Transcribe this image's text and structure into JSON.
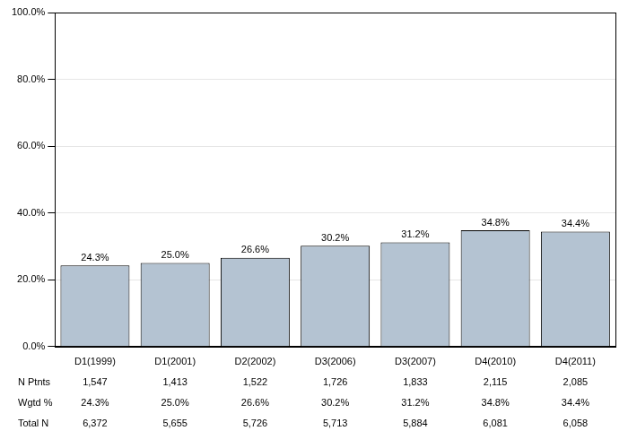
{
  "chart_data": {
    "type": "bar",
    "categories": [
      "D1(1999)",
      "D1(2001)",
      "D2(2002)",
      "D3(2006)",
      "D3(2007)",
      "D4(2010)",
      "D4(2011)"
    ],
    "values": [
      24.3,
      25.0,
      26.6,
      30.2,
      31.2,
      34.8,
      34.4
    ],
    "value_labels": [
      "24.3%",
      "25.0%",
      "26.6%",
      "30.2%",
      "31.2%",
      "34.8%",
      "34.4%"
    ],
    "color": "#b4c3d2",
    "ylim": [
      0,
      100
    ],
    "yticks": [
      {
        "value": 0,
        "label": "0.0%"
      },
      {
        "value": 20,
        "label": "20.0%"
      },
      {
        "value": 40,
        "label": "40.0%"
      },
      {
        "value": 60,
        "label": "60.0%"
      },
      {
        "value": 80,
        "label": "80.0%"
      },
      {
        "value": 100,
        "label": "100.0%"
      }
    ],
    "grid": true,
    "data_labels": true
  },
  "table": {
    "rows": [
      {
        "label": "N Ptnts",
        "values": [
          "1,547",
          "1,413",
          "1,522",
          "1,726",
          "1,833",
          "2,115",
          "2,085"
        ]
      },
      {
        "label": "Wgtd %",
        "values": [
          "24.3%",
          "25.0%",
          "26.6%",
          "30.2%",
          "31.2%",
          "34.8%",
          "34.4%"
        ]
      },
      {
        "label": "Total N",
        "values": [
          "6,372",
          "5,655",
          "5,726",
          "5,713",
          "5,884",
          "6,081",
          "6,058"
        ]
      }
    ]
  }
}
